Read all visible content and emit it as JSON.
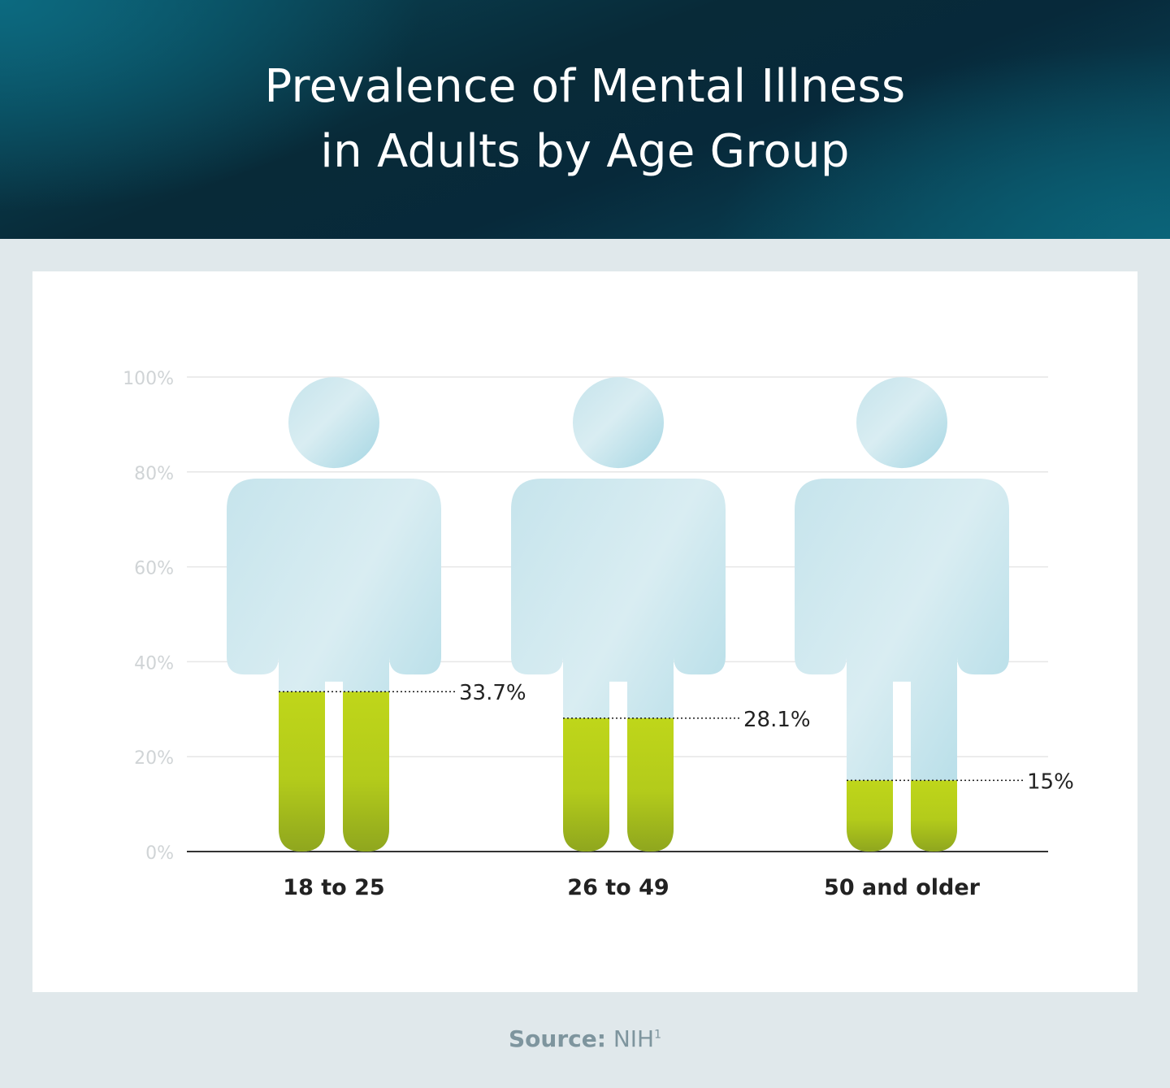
{
  "header": {
    "title_line1": "Prevalence of Mental Illness",
    "title_line2": "in Adults by Age Group"
  },
  "source": {
    "label": "Source:",
    "name": "NIH",
    "footnote": "1"
  },
  "colors": {
    "figure_fill": "#c9e6ee",
    "figure_fill_dark": "#a9d8e4",
    "bar_fill": "#bcd21a",
    "bar_fill_dark": "#8ea61c",
    "grid": "#e6e6e6",
    "axis": "#333333",
    "tick_text": "#d0d4d6",
    "label_text": "#222222"
  },
  "chart_data": {
    "type": "bar",
    "title": "Prevalence of Mental Illness in Adults by Age Group",
    "xlabel": "",
    "ylabel": "",
    "ylim": [
      0,
      100
    ],
    "yticks": [
      0,
      20,
      40,
      60,
      80,
      100
    ],
    "ytick_labels": [
      "0%",
      "20%",
      "40%",
      "60%",
      "80%",
      "100%"
    ],
    "grid": true,
    "categories": [
      "18 to 25",
      "26 to 49",
      "50 and older"
    ],
    "values": [
      33.7,
      28.1,
      15
    ],
    "data_labels": [
      "33.7%",
      "28.1%",
      "15%"
    ]
  }
}
